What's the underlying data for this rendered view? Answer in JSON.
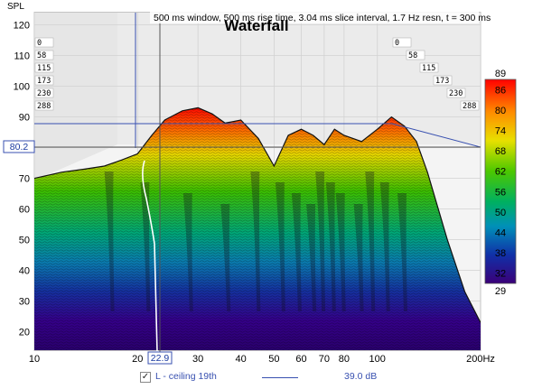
{
  "chart_data": {
    "type": "area",
    "title": "Waterfall",
    "subtitle": "500 ms window, 500 ms rise time, 3.04 ms slice interval, 1.7 Hz resn, t = 300 ms",
    "ylabel": "SPL",
    "xunit": "Hz",
    "xscale": "log",
    "xlim": [
      10,
      200
    ],
    "ylim": [
      14,
      124
    ],
    "x_ticks": [
      "10",
      "20",
      "30",
      "40",
      "50",
      "60",
      "70",
      "80",
      "100",
      "200Hz"
    ],
    "y_ticks": [
      "20",
      "30",
      "40",
      "50",
      "60",
      "70",
      "80",
      "90",
      "100",
      "110",
      "120"
    ],
    "time_labels": [
      "0",
      "58",
      "115",
      "173",
      "230",
      "288"
    ],
    "colorbar": {
      "min": 29,
      "max": 89,
      "ticks": [
        "86",
        "80",
        "74",
        "68",
        "62",
        "56",
        "50",
        "44",
        "38",
        "32"
      ],
      "top_label": "89",
      "bottom_label": "29"
    },
    "cursor": {
      "x_readout": "22.9",
      "y_readout": "80.2"
    },
    "front_slice": {
      "x": [
        10,
        12,
        14,
        16,
        18,
        20,
        22,
        24,
        27,
        30,
        33,
        36,
        40,
        45,
        50,
        55,
        60,
        65,
        70,
        75,
        80,
        90,
        100,
        110,
        120,
        130,
        140,
        160,
        180,
        200
      ],
      "y": [
        70,
        72,
        73,
        74,
        76,
        78,
        84,
        89,
        92,
        93,
        91,
        88,
        89,
        83,
        74,
        84,
        86,
        84,
        81,
        86,
        84,
        82,
        86,
        90,
        87,
        82,
        72,
        50,
        33,
        23
      ]
    },
    "legend": {
      "checked": true,
      "label": "L - ceiling 19th",
      "value": "39.0 dB",
      "line_color": "#3850b0"
    }
  }
}
